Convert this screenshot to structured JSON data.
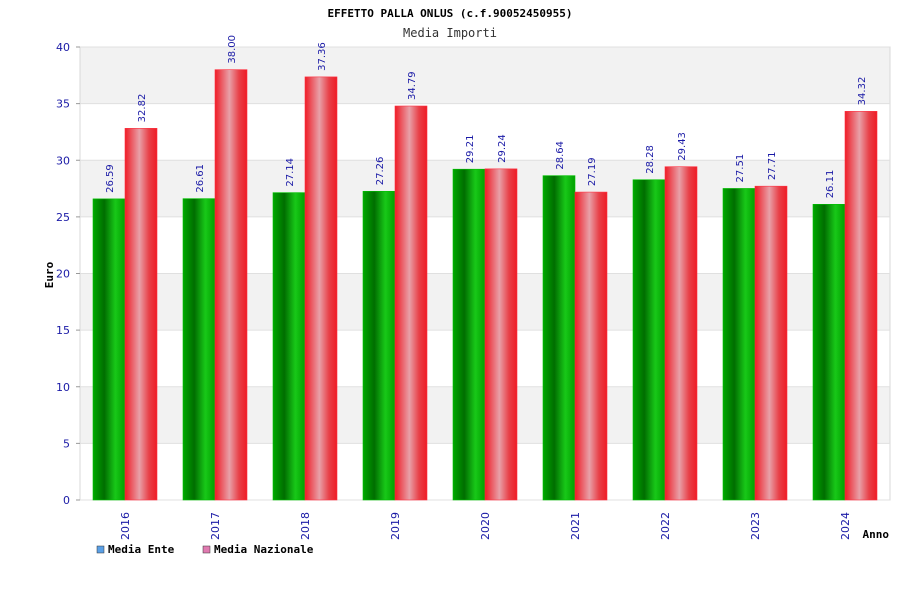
{
  "chart_data": {
    "type": "bar",
    "title": "EFFETTO PALLA ONLUS (c.f.90052450955)",
    "subtitle": "Media Importi",
    "xlabel": "Anno",
    "ylabel": "Euro",
    "ylim": [
      0,
      40
    ],
    "yticks": [
      0,
      5,
      10,
      15,
      20,
      25,
      30,
      35,
      40
    ],
    "grid": true,
    "legend_position": "bottom-left",
    "categories": [
      "2016",
      "2017",
      "2018",
      "2019",
      "2020",
      "2021",
      "2022",
      "2023",
      "2024"
    ],
    "series": [
      {
        "name": "Media Ente",
        "color": "#00a000",
        "legend_color": "#5aa0e6",
        "values": [
          26.59,
          26.61,
          27.14,
          27.26,
          29.21,
          28.64,
          28.28,
          27.51,
          26.11
        ],
        "labels": [
          "26.59",
          "26.61",
          "27.14",
          "27.26",
          "29.21",
          "28.64",
          "28.28",
          "27.51",
          "26.11"
        ]
      },
      {
        "name": "Media Nazionale",
        "color": "#e8202a",
        "legend_color": "#e07ab0",
        "values": [
          32.82,
          38.0,
          37.36,
          34.79,
          29.24,
          27.19,
          29.43,
          27.71,
          34.32
        ],
        "labels": [
          "32.82",
          "38.00",
          "37.36",
          "34.79",
          "29.24",
          "27.19",
          "29.43",
          "27.71",
          "34.32"
        ]
      }
    ]
  }
}
